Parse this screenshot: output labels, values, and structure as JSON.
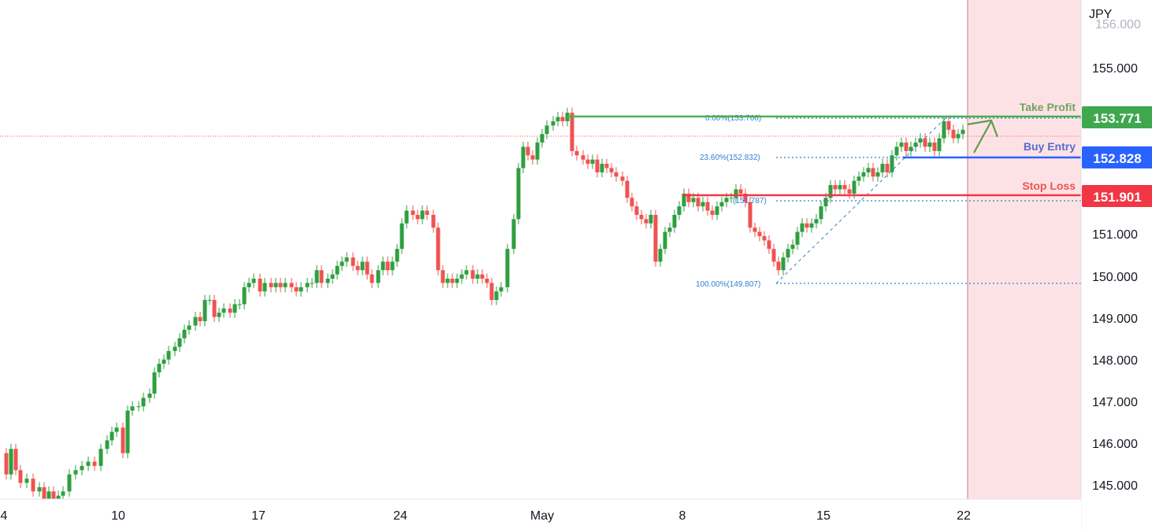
{
  "chart_data": {
    "type": "candlestick",
    "currency_label": "JPY",
    "x_tick_labels": [
      "4",
      "10",
      "17",
      "24",
      "May",
      "8",
      "15",
      "22"
    ],
    "y_tick_labels": [
      "145.000",
      "146.000",
      "147.000",
      "148.000",
      "149.000",
      "150.000",
      "151.000",
      "155.000"
    ],
    "ylim": [
      144.72,
      156.45
    ],
    "levels": {
      "take_profit": {
        "label": "Take Profit",
        "value": "153.771",
        "color": "#4caf50"
      },
      "buy_entry": {
        "label": "Buy Entry",
        "value": "152.828",
        "color": "#2962ff"
      },
      "stop_loss": {
        "label": "Stop Loss",
        "value": "151.901",
        "color": "#f23645"
      }
    },
    "fib_labels": {
      "f0": "0.00%(153.766)",
      "f236": "23.60%(152.832)",
      "f_mid": "(151.787)",
      "f100": "100.00%(149.807)"
    },
    "colors": {
      "up": "#26a69a",
      "up_candle": "#2e9f3f",
      "down": "#ef5350",
      "future_zone": "#fde2e5"
    },
    "price_path": [
      [
        0,
        145.8
      ],
      [
        8,
        145.3
      ],
      [
        14,
        145.9
      ],
      [
        20,
        145.4
      ],
      [
        26,
        145.1
      ],
      [
        34,
        145.2
      ],
      [
        42,
        144.9
      ],
      [
        50,
        145.0
      ],
      [
        56,
        144.6
      ],
      [
        62,
        144.9
      ],
      [
        68,
        144.7
      ],
      [
        74,
        144.8
      ],
      [
        80,
        144.9
      ],
      [
        88,
        145.3
      ],
      [
        96,
        145.4
      ],
      [
        104,
        145.5
      ],
      [
        112,
        145.6
      ],
      [
        120,
        145.5
      ],
      [
        128,
        145.9
      ],
      [
        136,
        146.1
      ],
      [
        142,
        146.3
      ],
      [
        148,
        146.4
      ],
      [
        156,
        145.8
      ],
      [
        162,
        146.8
      ],
      [
        168,
        146.9
      ],
      [
        176,
        146.9
      ],
      [
        182,
        147.1
      ],
      [
        190,
        147.2
      ],
      [
        196,
        147.7
      ],
      [
        202,
        147.9
      ],
      [
        208,
        148.0
      ],
      [
        214,
        148.2
      ],
      [
        222,
        148.3
      ],
      [
        228,
        148.5
      ],
      [
        234,
        148.7
      ],
      [
        240,
        148.8
      ],
      [
        248,
        149.0
      ],
      [
        254,
        148.9
      ],
      [
        260,
        149.4
      ],
      [
        266,
        149.4
      ],
      [
        272,
        149.0
      ],
      [
        278,
        149.1
      ],
      [
        284,
        149.2
      ],
      [
        292,
        149.1
      ],
      [
        298,
        149.3
      ],
      [
        304,
        149.3
      ],
      [
        310,
        149.7
      ],
      [
        316,
        149.8
      ],
      [
        322,
        149.9
      ],
      [
        330,
        149.6
      ],
      [
        336,
        149.8
      ],
      [
        344,
        149.7
      ],
      [
        350,
        149.8
      ],
      [
        356,
        149.7
      ],
      [
        362,
        149.8
      ],
      [
        370,
        149.7
      ],
      [
        376,
        149.6
      ],
      [
        382,
        149.7
      ],
      [
        390,
        149.8
      ],
      [
        396,
        149.8
      ],
      [
        402,
        150.1
      ],
      [
        408,
        149.8
      ],
      [
        416,
        149.9
      ],
      [
        422,
        150.0
      ],
      [
        428,
        150.2
      ],
      [
        434,
        150.3
      ],
      [
        440,
        150.4
      ],
      [
        448,
        150.2
      ],
      [
        454,
        150.1
      ],
      [
        460,
        150.3
      ],
      [
        466,
        150.0
      ],
      [
        472,
        149.8
      ],
      [
        480,
        150.1
      ],
      [
        486,
        150.3
      ],
      [
        492,
        150.1
      ],
      [
        498,
        150.3
      ],
      [
        504,
        150.6
      ],
      [
        510,
        151.2
      ],
      [
        516,
        151.5
      ],
      [
        524,
        151.4
      ],
      [
        530,
        151.3
      ],
      [
        536,
        151.5
      ],
      [
        542,
        151.4
      ],
      [
        550,
        151.1
      ],
      [
        556,
        150.1
      ],
      [
        562,
        149.8
      ],
      [
        568,
        149.9
      ],
      [
        574,
        149.8
      ],
      [
        580,
        149.9
      ],
      [
        586,
        150.0
      ],
      [
        592,
        150.1
      ],
      [
        600,
        149.9
      ],
      [
        606,
        150.0
      ],
      [
        612,
        149.9
      ],
      [
        618,
        149.8
      ],
      [
        624,
        149.4
      ],
      [
        630,
        149.6
      ],
      [
        636,
        149.7
      ],
      [
        644,
        150.6
      ],
      [
        652,
        151.3
      ],
      [
        658,
        152.5
      ],
      [
        664,
        153.0
      ],
      [
        670,
        152.8
      ],
      [
        676,
        152.7
      ],
      [
        682,
        153.1
      ],
      [
        688,
        153.3
      ],
      [
        694,
        153.5
      ],
      [
        702,
        153.6
      ],
      [
        708,
        153.7
      ],
      [
        714,
        153.6
      ],
      [
        720,
        153.8
      ],
      [
        726,
        152.9
      ],
      [
        732,
        152.8
      ],
      [
        740,
        152.7
      ],
      [
        746,
        152.6
      ],
      [
        752,
        152.7
      ],
      [
        758,
        152.4
      ],
      [
        764,
        152.6
      ],
      [
        770,
        152.5
      ],
      [
        776,
        152.4
      ],
      [
        782,
        152.3
      ],
      [
        790,
        152.2
      ],
      [
        796,
        151.8
      ],
      [
        802,
        151.6
      ],
      [
        808,
        151.4
      ],
      [
        814,
        151.3
      ],
      [
        820,
        151.2
      ],
      [
        826,
        151.4
      ],
      [
        832,
        150.3
      ],
      [
        838,
        150.6
      ],
      [
        844,
        151.0
      ],
      [
        850,
        151.1
      ],
      [
        856,
        151.4
      ],
      [
        862,
        151.6
      ],
      [
        868,
        151.9
      ],
      [
        874,
        151.7
      ],
      [
        880,
        151.8
      ],
      [
        886,
        151.6
      ],
      [
        892,
        151.7
      ],
      [
        898,
        151.5
      ],
      [
        904,
        151.4
      ],
      [
        910,
        151.6
      ],
      [
        916,
        151.7
      ],
      [
        922,
        151.8
      ],
      [
        928,
        151.8
      ],
      [
        934,
        152.0
      ],
      [
        940,
        151.9
      ],
      [
        946,
        151.7
      ],
      [
        952,
        151.1
      ],
      [
        958,
        151.0
      ],
      [
        964,
        150.9
      ],
      [
        970,
        150.8
      ],
      [
        976,
        150.6
      ],
      [
        982,
        150.3
      ],
      [
        988,
        150.1
      ],
      [
        994,
        150.4
      ],
      [
        1000,
        150.6
      ],
      [
        1006,
        150.7
      ],
      [
        1012,
        151.0
      ],
      [
        1018,
        151.2
      ],
      [
        1024,
        151.1
      ],
      [
        1030,
        151.2
      ],
      [
        1036,
        151.3
      ],
      [
        1042,
        151.6
      ],
      [
        1048,
        151.8
      ],
      [
        1054,
        152.1
      ],
      [
        1060,
        152.0
      ],
      [
        1066,
        152.1
      ],
      [
        1072,
        152.0
      ],
      [
        1078,
        151.9
      ],
      [
        1084,
        152.2
      ],
      [
        1090,
        152.3
      ],
      [
        1096,
        152.4
      ],
      [
        1102,
        152.5
      ],
      [
        1108,
        152.3
      ],
      [
        1114,
        152.4
      ],
      [
        1120,
        152.6
      ],
      [
        1126,
        152.4
      ],
      [
        1132,
        152.8
      ],
      [
        1138,
        153.0
      ],
      [
        1144,
        153.1
      ],
      [
        1150,
        152.9
      ],
      [
        1156,
        153.0
      ],
      [
        1162,
        153.1
      ],
      [
        1168,
        153.2
      ],
      [
        1174,
        153.0
      ],
      [
        1180,
        153.1
      ],
      [
        1186,
        152.9
      ],
      [
        1192,
        153.2
      ],
      [
        1198,
        153.6
      ],
      [
        1204,
        153.4
      ],
      [
        1210,
        153.2
      ],
      [
        1216,
        153.3
      ],
      [
        1222,
        153.4
      ]
    ]
  }
}
